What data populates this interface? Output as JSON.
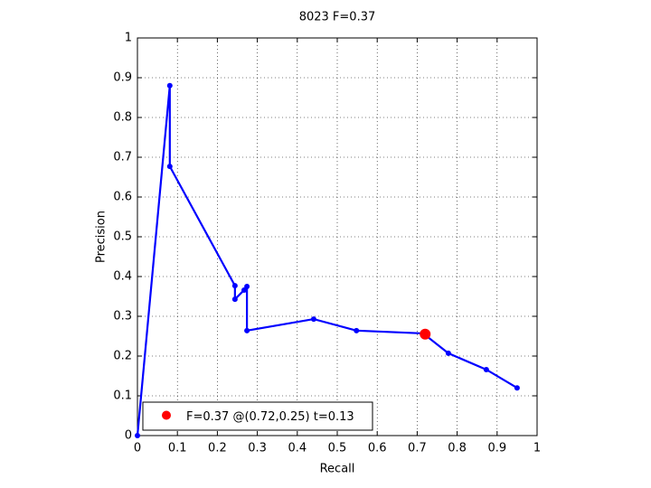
{
  "chart_data": {
    "type": "line",
    "title": "8023 F=0.37",
    "xlabel": "Recall",
    "ylabel": "Precision",
    "xlim": [
      0,
      1
    ],
    "ylim": [
      0,
      1
    ],
    "xticks": [
      0,
      0.1,
      0.2,
      0.3,
      0.4,
      0.5,
      0.6,
      0.7,
      0.8,
      0.9,
      1
    ],
    "yticks": [
      0,
      0.1,
      0.2,
      0.3,
      0.4,
      0.5,
      0.6,
      0.7,
      0.8,
      0.9,
      1
    ],
    "grid": true,
    "legend": "lower left",
    "series": [
      {
        "color": "#0000ff",
        "x": [
          0,
          0.081,
          0.081,
          0.244,
          0.244,
          0.267,
          0.274,
          0.274,
          0.441,
          0.548,
          0.715,
          0.778,
          0.873,
          0.95
        ],
        "values": [
          0,
          0.88,
          0.677,
          0.377,
          0.343,
          0.366,
          0.375,
          0.264,
          0.293,
          0.264,
          0.257,
          0.207,
          0.166,
          0.12
        ]
      },
      {
        "name": "F=0.37 @(0.72,0.25) t=0.13",
        "color": "#ff0000",
        "x": [
          0.72
        ],
        "values": [
          0.255
        ]
      }
    ]
  }
}
